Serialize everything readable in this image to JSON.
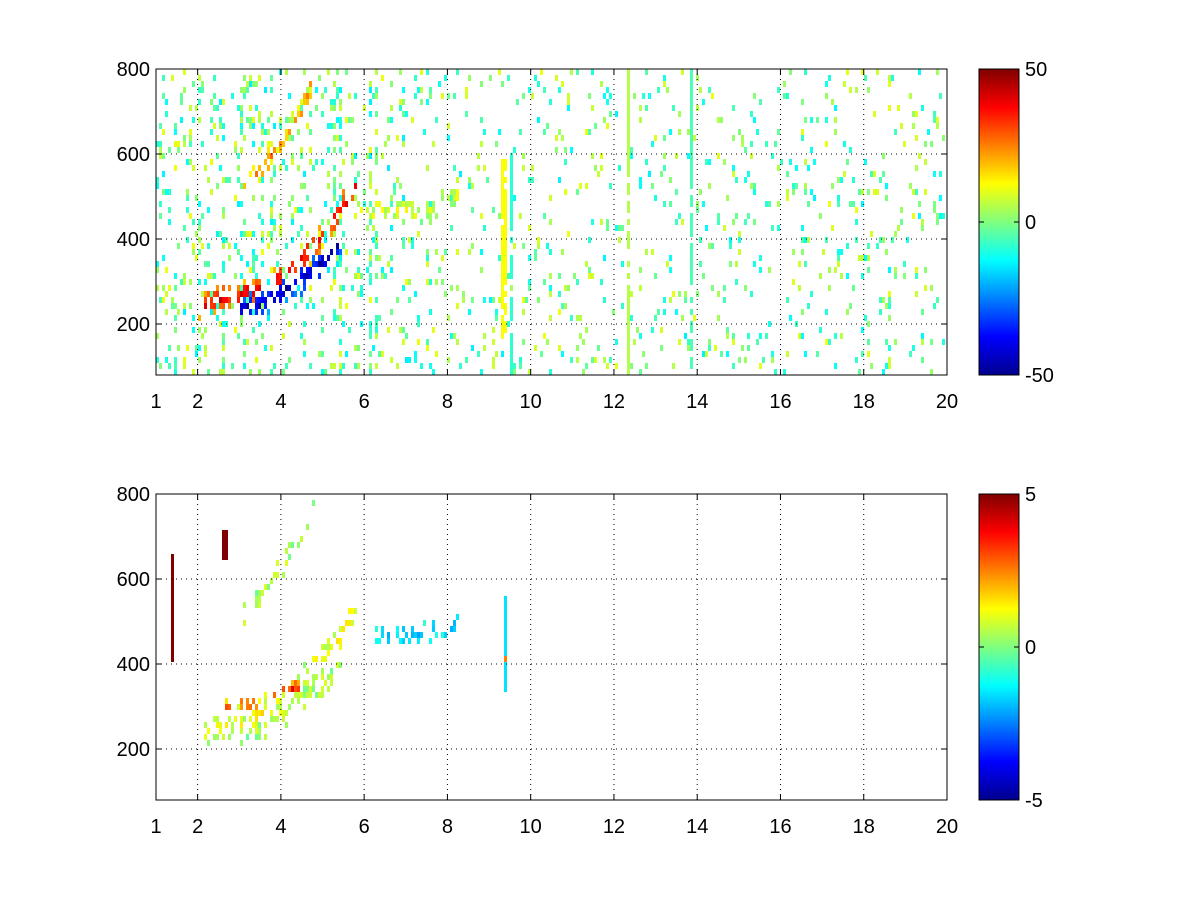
{
  "chart_data": [
    {
      "type": "heatmap",
      "title": "",
      "xlabel": "",
      "ylabel": "",
      "xlim": [
        1,
        20
      ],
      "ylim": [
        80,
        800
      ],
      "xticks": [
        1,
        2,
        4,
        6,
        8,
        10,
        12,
        14,
        16,
        18,
        20
      ],
      "xtick_labels": [
        "1",
        "2",
        "4",
        "6",
        "8",
        "10",
        "12",
        "14",
        "16",
        "18",
        "20"
      ],
      "yticks": [
        200,
        400,
        600,
        800
      ],
      "ytick_labels": [
        "200",
        "400",
        "600",
        "800"
      ],
      "grid": true,
      "colormap": "jet",
      "clim": [
        -50,
        50
      ],
      "colorbar_ticks": [
        -50,
        0,
        50
      ],
      "colorbar_labels": [
        "-50",
        "0",
        "50"
      ],
      "features": [
        {
          "kind": "ridge",
          "x": [
            2.0,
            2.5,
            3.0,
            3.5,
            4.0,
            4.5,
            5.0,
            5.5,
            5.8
          ],
          "y": [
            240,
            255,
            268,
            285,
            310,
            350,
            410,
            480,
            520
          ],
          "value": 40,
          "width": 22
        },
        {
          "kind": "ridge",
          "x": [
            3.0,
            3.5,
            4.0,
            4.5,
            5.0,
            5.5
          ],
          "y": [
            235,
            250,
            275,
            305,
            345,
            400
          ],
          "value": -45,
          "width": 22
        },
        {
          "kind": "ridge",
          "x": [
            3.0,
            3.5,
            4.0,
            4.5,
            4.8
          ],
          "y": [
            510,
            560,
            625,
            700,
            780
          ],
          "value": 22,
          "width": 18
        },
        {
          "kind": "ridge",
          "x": [
            5.8,
            6.3,
            6.8,
            7.2,
            7.8,
            8.3
          ],
          "y": [
            465,
            468,
            470,
            468,
            480,
            500
          ],
          "value": 8,
          "width": 18
        },
        {
          "kind": "column",
          "x": 9.35,
          "y": [
            160,
            590
          ],
          "value": 12
        },
        {
          "kind": "column",
          "x": 9.55,
          "y": [
            80,
            600
          ],
          "value": -8
        },
        {
          "kind": "column",
          "x": 13.85,
          "y": [
            80,
            800
          ],
          "value": -5
        },
        {
          "kind": "column",
          "x": 12.35,
          "y": [
            80,
            800
          ],
          "value": 5
        }
      ]
    },
    {
      "type": "heatmap",
      "title": "",
      "xlabel": "",
      "ylabel": "",
      "xlim": [
        1,
        20
      ],
      "ylim": [
        80,
        800
      ],
      "xticks": [
        1,
        2,
        4,
        6,
        8,
        10,
        12,
        14,
        16,
        18,
        20
      ],
      "xtick_labels": [
        "1",
        "2",
        "4",
        "6",
        "8",
        "10",
        "12",
        "14",
        "16",
        "18",
        "20"
      ],
      "yticks": [
        200,
        400,
        600,
        800
      ],
      "ytick_labels": [
        "200",
        "400",
        "600",
        "800"
      ],
      "grid": true,
      "colormap": "jet",
      "clim": [
        -5,
        5
      ],
      "colorbar_ticks": [
        -5,
        0,
        5
      ],
      "colorbar_labels": [
        "-5",
        "0",
        "5"
      ],
      "features": [
        {
          "kind": "ridge",
          "x": [
            2.0,
            2.5,
            3.0,
            3.5,
            4.0,
            4.5,
            5.0,
            5.5,
            5.8
          ],
          "y": [
            240,
            255,
            268,
            285,
            310,
            350,
            410,
            480,
            520
          ],
          "value": 1.2,
          "width": 26
        },
        {
          "kind": "ridge",
          "x": [
            3.0,
            3.5,
            4.0,
            4.5,
            5.0,
            5.5
          ],
          "y": [
            240,
            255,
            280,
            310,
            350,
            400
          ],
          "value": 0.4,
          "width": 22
        },
        {
          "kind": "ridge",
          "x": [
            2.6,
            3.0,
            3.5,
            4.0,
            4.5,
            4.8
          ],
          "y": [
            300,
            305,
            310,
            330,
            350,
            370
          ],
          "value": 3.5,
          "width": 10
        },
        {
          "kind": "ridge",
          "x": [
            3.0,
            3.5,
            4.0,
            4.5,
            4.8
          ],
          "y": [
            510,
            560,
            625,
            700,
            780
          ],
          "value": 0.5,
          "width": 18
        },
        {
          "kind": "ridge",
          "x": [
            6.2,
            6.7,
            7.2,
            7.8,
            8.3
          ],
          "y": [
            465,
            470,
            470,
            475,
            500
          ],
          "value": -1.8,
          "width": 18
        },
        {
          "kind": "segment",
          "x": 9.38,
          "y": [
            330,
            560
          ],
          "value": -1.5
        },
        {
          "kind": "segment",
          "x": 9.38,
          "y": [
            400,
            420
          ],
          "value": 2.5
        },
        {
          "kind": "segment",
          "x": 1.4,
          "y": [
            400,
            660
          ],
          "value": 5
        },
        {
          "kind": "segment",
          "x": 2.65,
          "y": [
            650,
            720
          ],
          "value": 5
        }
      ]
    }
  ]
}
